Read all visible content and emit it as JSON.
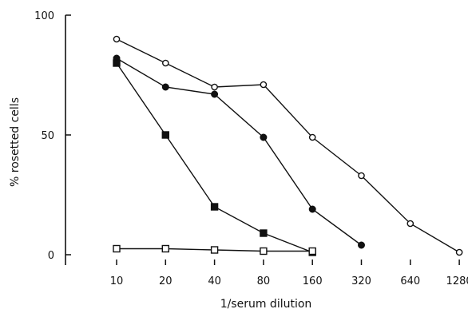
{
  "chart_data": {
    "type": "line",
    "xlabel": "1/serum  dilution",
    "ylabel": "% rosetted  cells",
    "x_ticks": [
      "10",
      "20",
      "40",
      "80",
      "160",
      "320",
      "640",
      "1280"
    ],
    "y_ticks": [
      "0",
      "50",
      "100"
    ],
    "ylim": [
      0,
      100
    ],
    "x_scale": "log2",
    "grid": false,
    "legend": "none",
    "series": [
      {
        "marker": "open-circle",
        "x": [
          10,
          20,
          40,
          80,
          160,
          320,
          640,
          1280
        ],
        "y": [
          90,
          80,
          70,
          71,
          49,
          33,
          13,
          1
        ]
      },
      {
        "marker": "filled-circle",
        "x": [
          10,
          20,
          40,
          80,
          160,
          320
        ],
        "y": [
          82,
          70,
          67,
          49,
          19,
          4
        ]
      },
      {
        "marker": "filled-square",
        "x": [
          10,
          20,
          40,
          80,
          160
        ],
        "y": [
          80,
          50,
          20,
          9,
          1
        ]
      },
      {
        "marker": "open-square",
        "x": [
          10,
          20,
          40,
          80,
          160
        ],
        "y": [
          2.5,
          2.5,
          2,
          1.5,
          1.5
        ]
      }
    ]
  }
}
